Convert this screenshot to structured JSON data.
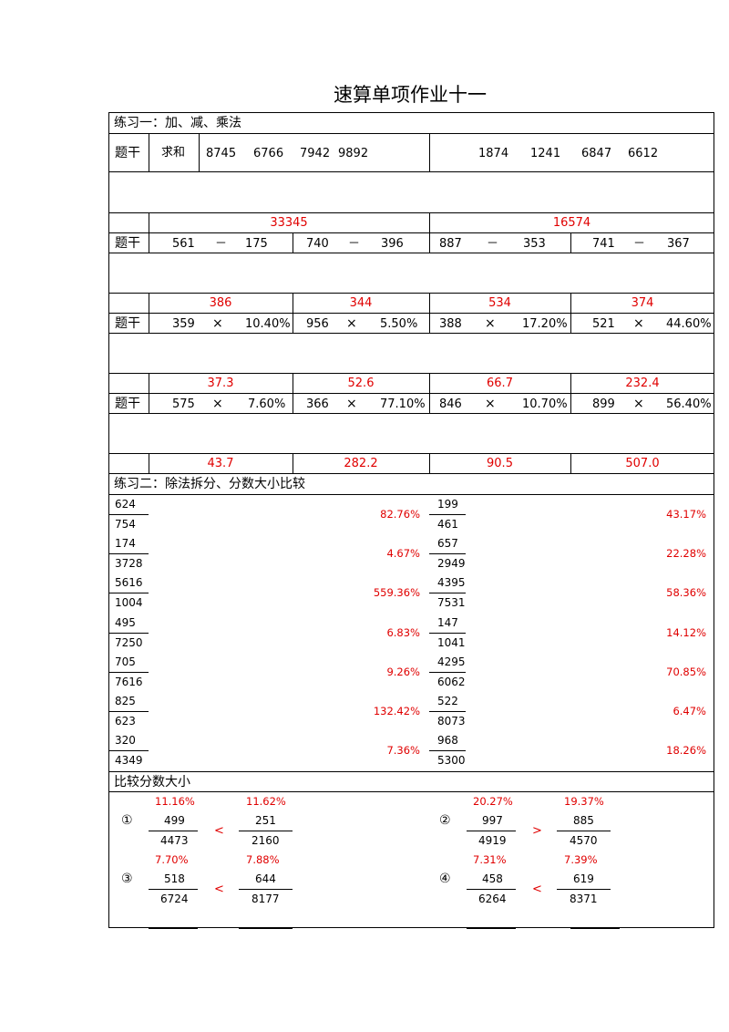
{
  "title": "速算单项作业十一",
  "section1": {
    "label": "练习一：加、减、乘法",
    "stem": "题干",
    "sum_label": "求和",
    "sum_left": [
      "8745",
      "6766",
      "7942",
      "9892"
    ],
    "sum_right": [
      "1874",
      "1241",
      "6847",
      "6612"
    ],
    "sum_answers": [
      "33345",
      "16574"
    ],
    "sub_rows": [
      {
        "a": "561",
        "op": "－",
        "b": "175"
      },
      {
        "a": "740",
        "op": "－",
        "b": "396"
      },
      {
        "a": "887",
        "op": "－",
        "b": "353"
      },
      {
        "a": "741",
        "op": "－",
        "b": "367"
      }
    ],
    "sub_answers": [
      "386",
      "344",
      "534",
      "374"
    ],
    "mul_rows_1": [
      {
        "a": "359",
        "op": "×",
        "b": "10.40%"
      },
      {
        "a": "956",
        "op": "×",
        "b": "5.50%"
      },
      {
        "a": "388",
        "op": "×",
        "b": "17.20%"
      },
      {
        "a": "521",
        "op": "×",
        "b": "44.60%"
      }
    ],
    "mul_answers_1": [
      "37.3",
      "52.6",
      "66.7",
      "232.4"
    ],
    "mul_rows_2": [
      {
        "a": "575",
        "op": "×",
        "b": "7.60%"
      },
      {
        "a": "366",
        "op": "×",
        "b": "77.10%"
      },
      {
        "a": "846",
        "op": "×",
        "b": "10.70%"
      },
      {
        "a": "899",
        "op": "×",
        "b": "56.40%"
      }
    ],
    "mul_answers_2": [
      "43.7",
      "282.2",
      "90.5",
      "507.0"
    ]
  },
  "section2": {
    "label": "练习二：除法拆分、分数大小比较",
    "left": [
      {
        "num": "624",
        "den": "754",
        "pct": "82.76%"
      },
      {
        "num": "174",
        "den": "3728",
        "pct": "4.67%"
      },
      {
        "num": "5616",
        "den": "1004",
        "pct": "559.36%"
      },
      {
        "num": "495",
        "den": "7250",
        "pct": "6.83%"
      },
      {
        "num": "705",
        "den": "7616",
        "pct": "9.26%"
      },
      {
        "num": "825",
        "den": "623",
        "pct": "132.42%"
      },
      {
        "num": "320",
        "den": "4349",
        "pct": "7.36%"
      }
    ],
    "right": [
      {
        "num": "199",
        "den": "461",
        "pct": "43.17%"
      },
      {
        "num": "657",
        "den": "2949",
        "pct": "22.28%"
      },
      {
        "num": "4395",
        "den": "7531",
        "pct": "58.36%"
      },
      {
        "num": "147",
        "den": "1041",
        "pct": "14.12%"
      },
      {
        "num": "4295",
        "den": "6062",
        "pct": "70.85%"
      },
      {
        "num": "522",
        "den": "8073",
        "pct": "6.47%"
      },
      {
        "num": "968",
        "den": "5300",
        "pct": "18.26%"
      }
    ]
  },
  "section3": {
    "label": "比较分数大小",
    "items": [
      {
        "mark": "①",
        "p1": "11.16%",
        "n1": "499",
        "d1": "4473",
        "cmp": "<",
        "p2": "11.62%",
        "n2": "251",
        "d2": "2160"
      },
      {
        "mark": "②",
        "p1": "20.27%",
        "n1": "997",
        "d1": "4919",
        "cmp": ">",
        "p2": "19.37%",
        "n2": "885",
        "d2": "4570"
      },
      {
        "mark": "③",
        "p1": "7.70%",
        "n1": "518",
        "d1": "6724",
        "cmp": "<",
        "p2": "7.88%",
        "n2": "644",
        "d2": "8177"
      },
      {
        "mark": "④",
        "p1": "7.31%",
        "n1": "458",
        "d1": "6264",
        "cmp": "<",
        "p2": "7.39%",
        "n2": "619",
        "d2": "8371"
      }
    ]
  }
}
